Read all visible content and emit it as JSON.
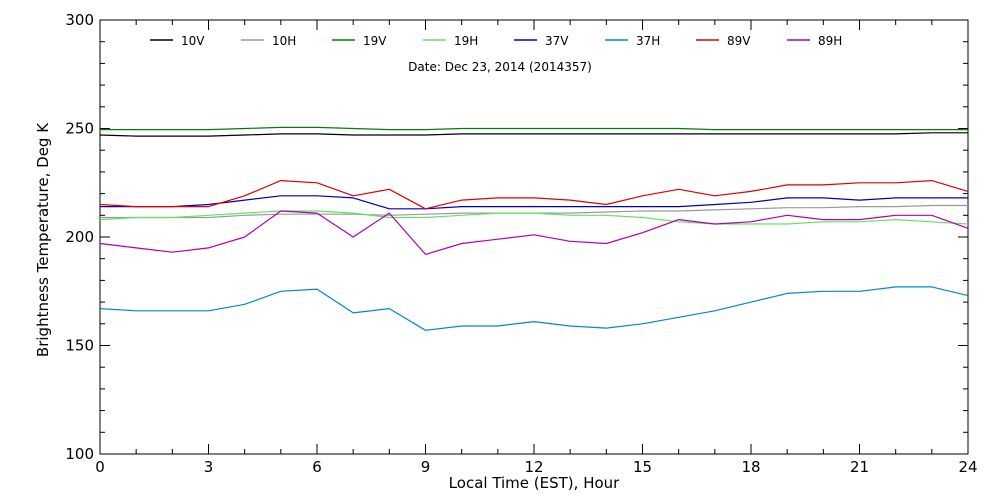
{
  "chart_data": {
    "type": "line",
    "title": "",
    "annotation": "Date: Dec 23, 2014 (2014357)",
    "xlabel": "Local Time (EST), Hour",
    "ylabel": "Brightness Temperature, Deg K",
    "xlim": [
      0,
      24
    ],
    "ylim": [
      100,
      300
    ],
    "x_ticks": [
      0,
      3,
      6,
      9,
      12,
      15,
      18,
      21,
      24
    ],
    "y_ticks": [
      100,
      150,
      200,
      250,
      300
    ],
    "grid": false,
    "legend_placement": "top",
    "x": [
      0,
      1,
      2,
      3,
      4,
      5,
      6,
      7,
      8,
      9,
      10,
      11,
      12,
      13,
      14,
      15,
      16,
      17,
      18,
      19,
      20,
      21,
      22,
      23,
      24
    ],
    "series": [
      {
        "name": "10V",
        "color": "#000000",
        "values": [
          247,
          246.5,
          246.5,
          246.5,
          247,
          247.5,
          247.5,
          247,
          247,
          247,
          247.5,
          247.5,
          247.5,
          247.5,
          247.5,
          247.5,
          247.5,
          247.5,
          247.5,
          247.5,
          247.5,
          247.5,
          247.5,
          248,
          248
        ]
      },
      {
        "name": "10H",
        "color": "#9a9a9a",
        "values": [
          209,
          209,
          209,
          209,
          210,
          210.5,
          210.5,
          210.5,
          210,
          210.5,
          211,
          211,
          211,
          211,
          211.5,
          212,
          212,
          212.5,
          213,
          213.5,
          213.5,
          214,
          214,
          214.5,
          214.5
        ]
      },
      {
        "name": "19V",
        "color": "#008000",
        "values": [
          249.5,
          249.5,
          249.5,
          249.5,
          250,
          250.5,
          250.5,
          250,
          249.5,
          249.5,
          250,
          250,
          250,
          250,
          250,
          250,
          250,
          249.5,
          249.5,
          249.5,
          249.5,
          249.5,
          249.5,
          249.5,
          249.5
        ]
      },
      {
        "name": "19H",
        "color": "#66e066",
        "values": [
          208,
          209,
          209,
          210,
          211,
          212,
          212,
          211,
          209,
          209,
          210,
          211,
          211,
          210,
          210,
          209,
          207,
          206,
          206,
          206,
          207,
          207,
          208,
          207,
          206
        ]
      },
      {
        "name": "37V",
        "color": "#0000b4",
        "values": [
          214,
          214,
          214,
          215,
          217,
          219,
          219,
          218,
          213,
          213,
          214,
          214,
          214,
          214,
          214,
          214,
          214,
          215,
          216,
          218,
          218,
          217,
          218,
          218,
          218
        ]
      },
      {
        "name": "37H",
        "color": "#0088cc",
        "values": [
          167,
          166,
          166,
          166,
          169,
          175,
          176,
          165,
          167,
          157,
          159,
          159,
          161,
          159,
          158,
          160,
          163,
          166,
          170,
          174,
          175,
          175,
          177,
          177,
          173
        ]
      },
      {
        "name": "89V",
        "color": "#e00000",
        "values": [
          215,
          214,
          214,
          214,
          219,
          226,
          225,
          219,
          222,
          213,
          217,
          218,
          218,
          217,
          215,
          219,
          222,
          219,
          221,
          224,
          224,
          225,
          225,
          226,
          221
        ]
      },
      {
        "name": "89H",
        "color": "#b000b0",
        "values": [
          197,
          195,
          193,
          195,
          200,
          212,
          211,
          200,
          211,
          192,
          197,
          199,
          201,
          198,
          197,
          202,
          208,
          206,
          207,
          210,
          208,
          208,
          210,
          210,
          204
        ]
      }
    ]
  }
}
